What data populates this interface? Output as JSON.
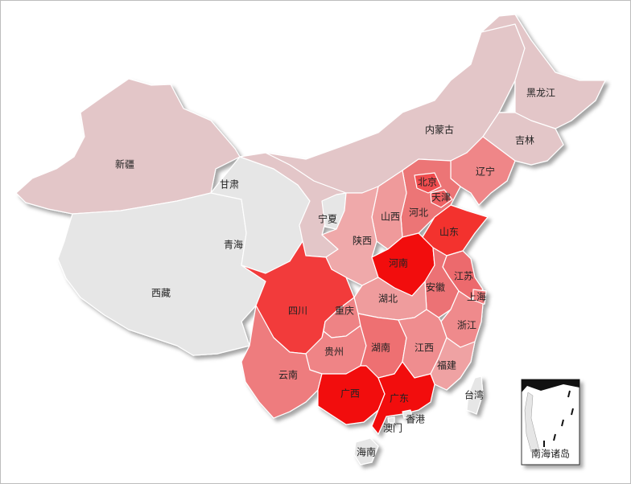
{
  "provinces": [
    {
      "id": "xinjiang",
      "name": "新疆",
      "color": "#e3c6c8"
    },
    {
      "id": "xizang",
      "name": "西藏",
      "color": "#e6e6e6"
    },
    {
      "id": "qinghai",
      "name": "青海",
      "color": "#e6e6e6"
    },
    {
      "id": "gansu",
      "name": "甘肃",
      "color": "#e3c6c8"
    },
    {
      "id": "neimenggu",
      "name": "内蒙古",
      "color": "#e3c6c8"
    },
    {
      "id": "heilongjiang",
      "name": "黑龙江",
      "color": "#e3c6c8"
    },
    {
      "id": "jilin",
      "name": "吉林",
      "color": "#e3c6c8"
    },
    {
      "id": "liaoning",
      "name": "辽宁",
      "color": "#ef8688"
    },
    {
      "id": "beijing",
      "name": "北京",
      "color": "#f04d50"
    },
    {
      "id": "tianjin",
      "name": "天津",
      "color": "#ee6062"
    },
    {
      "id": "hebei",
      "name": "河北",
      "color": "#ec7476"
    },
    {
      "id": "shanxi",
      "name": "山西",
      "color": "#ef9a9b"
    },
    {
      "id": "ningxia",
      "name": "宁夏",
      "color": "#e6e6e6"
    },
    {
      "id": "shaanxi",
      "name": "陕西",
      "color": "#efa9aa"
    },
    {
      "id": "henan",
      "name": "河南",
      "color": "#f20b0b"
    },
    {
      "id": "shandong",
      "name": "山东",
      "color": "#f3322f"
    },
    {
      "id": "jiangsu",
      "name": "江苏",
      "color": "#ec6b6d"
    },
    {
      "id": "anhui",
      "name": "安徽",
      "color": "#ec7274"
    },
    {
      "id": "shanghai",
      "name": "上海",
      "color": "#f07e80"
    },
    {
      "id": "hubei",
      "name": "湖北",
      "color": "#ef9c9d"
    },
    {
      "id": "chongqing",
      "name": "重庆",
      "color": "#ee8385"
    },
    {
      "id": "sichuan",
      "name": "四川",
      "color": "#f23a3b"
    },
    {
      "id": "zhejiang",
      "name": "浙江",
      "color": "#ef8a8c"
    },
    {
      "id": "guizhou",
      "name": "贵州",
      "color": "#ef8486"
    },
    {
      "id": "hunan",
      "name": "湖南",
      "color": "#ee7072"
    },
    {
      "id": "jiangxi",
      "name": "江西",
      "color": "#ef8d8f"
    },
    {
      "id": "fujian",
      "name": "福建",
      "color": "#efa2a3"
    },
    {
      "id": "yunnan",
      "name": "云南",
      "color": "#ee7c7e"
    },
    {
      "id": "guangxi",
      "name": "广西",
      "color": "#f20b0b"
    },
    {
      "id": "guangdong",
      "name": "广东",
      "color": "#f20b0b"
    },
    {
      "id": "hainan",
      "name": "海南",
      "color": "#e6e6e6"
    },
    {
      "id": "hongkong",
      "name": "香港",
      "color": "#e6e6e6"
    },
    {
      "id": "macau",
      "name": "澳门",
      "color": "#e6e6e6"
    },
    {
      "id": "taiwan",
      "name": "台湾",
      "color": "#e6e6e6"
    }
  ],
  "inset": {
    "label": "南海诸岛"
  }
}
